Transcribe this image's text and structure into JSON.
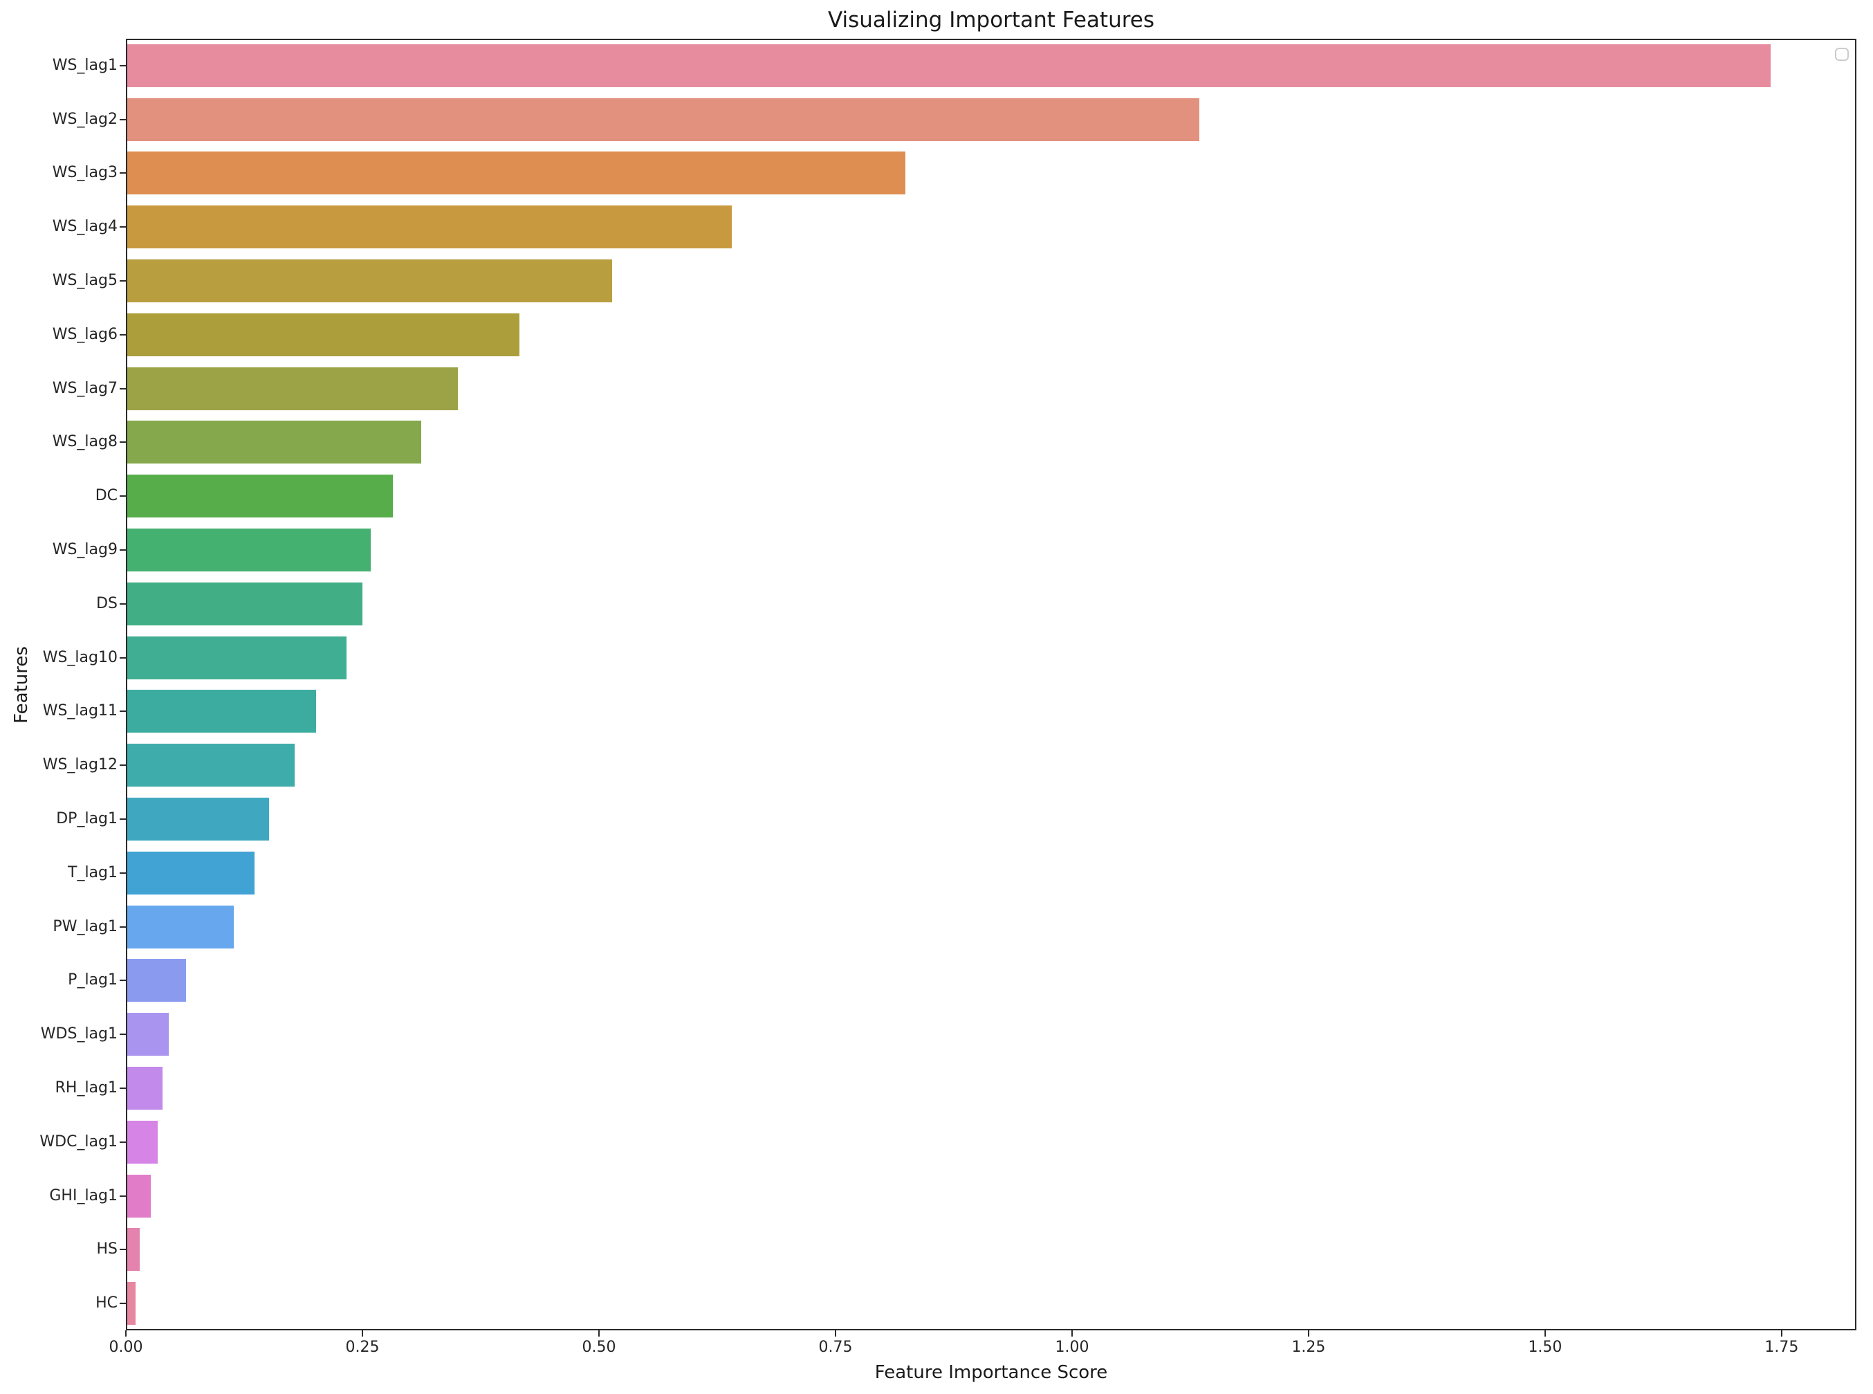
{
  "chart_data": {
    "type": "bar",
    "orientation": "horizontal",
    "title": "Visualizing Important Features",
    "xlabel": "Feature Importance Score",
    "ylabel": "Features",
    "categories": [
      "WS_lag1",
      "WS_lag2",
      "WS_lag3",
      "WS_lag4",
      "WS_lag5",
      "WS_lag6",
      "WS_lag7",
      "WS_lag8",
      "DC",
      "WS_lag9",
      "DS",
      "WS_lag10",
      "WS_lag11",
      "WS_lag12",
      "DP_lag1",
      "T_lag1",
      "PW_lag1",
      "P_lag1",
      "WDS_lag1",
      "RH_lag1",
      "WDC_lag1",
      "GHI_lag1",
      "HS",
      "HC"
    ],
    "values": [
      1.74,
      1.135,
      0.824,
      0.64,
      0.513,
      0.415,
      0.35,
      0.311,
      0.281,
      0.258,
      0.249,
      0.232,
      0.2,
      0.177,
      0.15,
      0.135,
      0.113,
      0.062,
      0.044,
      0.037,
      0.032,
      0.025,
      0.013,
      0.009
    ],
    "bar_colors": [
      "#e78b9e",
      "#e2917e",
      "#de8e50",
      "#c9993f",
      "#b89e3e",
      "#ac9f3b",
      "#9ca347",
      "#84a84b",
      "#58ad4b",
      "#45b171",
      "#42ae85",
      "#3fae92",
      "#3daca0",
      "#3eacab",
      "#3fa8c0",
      "#41a3d4",
      "#66a7ee",
      "#8a9bef",
      "#a995f0",
      "#c28aeb",
      "#d684e6",
      "#e17dc8",
      "#e483ad",
      "#e6879f"
    ],
    "xtick_labels": [
      "0.00",
      "0.25",
      "0.50",
      "0.75",
      "1.00",
      "1.25",
      "1.50",
      "1.75"
    ],
    "xtick_values": [
      0,
      0.25,
      0.5,
      0.75,
      1.0,
      1.25,
      1.5,
      1.75
    ],
    "xlim": [
      0,
      1.829
    ],
    "grid": false,
    "legend": {
      "visible": true,
      "entries": [],
      "position": "upper right"
    },
    "frame_color": "#2b2b2b",
    "background_color": "#ffffff"
  }
}
